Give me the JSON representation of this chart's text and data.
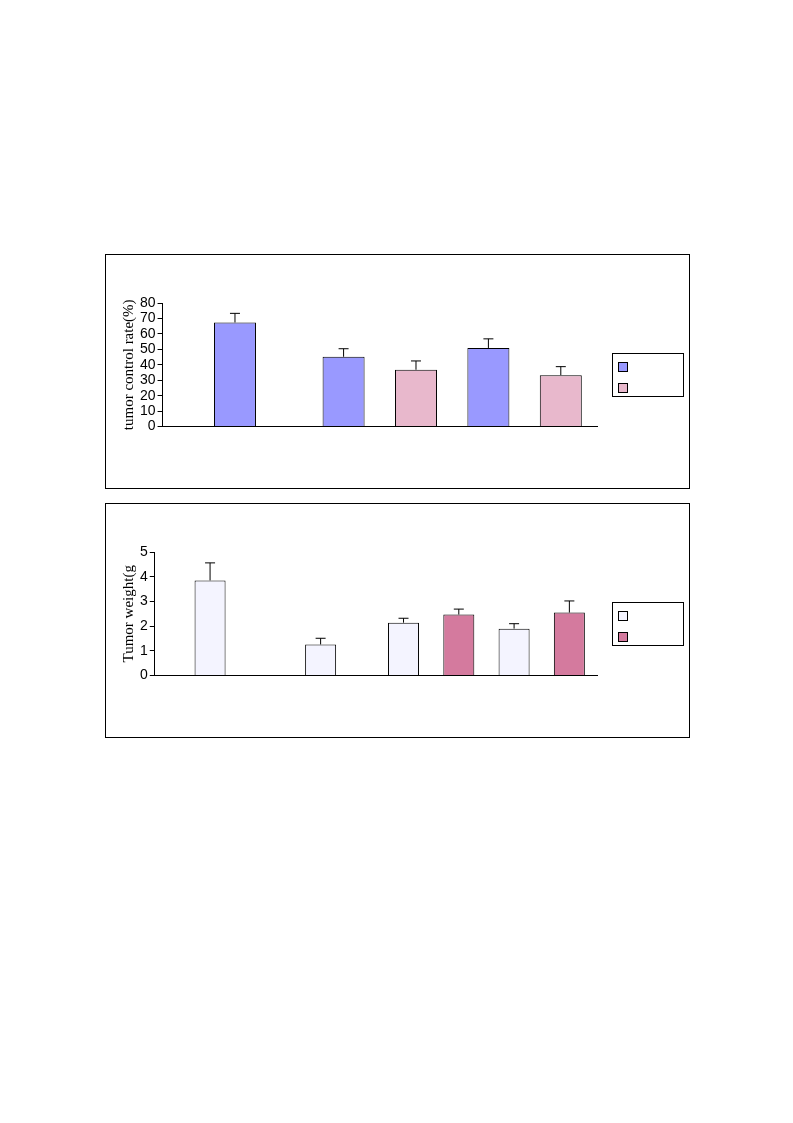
{
  "chart_data": [
    {
      "type": "bar",
      "ylabel": "tumor control rate(%)",
      "categories": [
        null,
        null,
        null
      ],
      "ylim": [
        0,
        80
      ],
      "yticks": [
        0,
        10,
        20,
        30,
        40,
        50,
        60,
        70,
        80
      ],
      "grid": false,
      "series": [
        {
          "color": "#9999ff",
          "values": [
            67.4,
            45.2,
            50.9
          ],
          "errors": [
            [
              67.4,
              73.3
            ],
            [
              45.2,
              50.4
            ],
            [
              50.9,
              56.8
            ]
          ]
        },
        {
          "color": "#e8b8cc",
          "values": [
            null,
            36.8,
            33.3
          ],
          "errors": [
            null,
            [
              36.8,
              42.5
            ],
            [
              33.3,
              38.8
            ]
          ]
        }
      ]
    },
    {
      "type": "bar",
      "ylabel": "Tumor weight(g",
      "categories": [
        null,
        null,
        null,
        null
      ],
      "ylim": [
        0,
        5
      ],
      "yticks": [
        0,
        1,
        2,
        3,
        4,
        5
      ],
      "grid": false,
      "series": [
        {
          "color": "#f4f4ff",
          "values": [
            3.85,
            1.26,
            2.14,
            1.9
          ],
          "errors": [
            [
              3.85,
              4.56
            ],
            [
              1.26,
              1.51
            ],
            [
              2.14,
              2.32
            ],
            [
              1.9,
              2.1
            ]
          ]
        },
        {
          "color": "#d47a9e",
          "values": [
            null,
            null,
            2.47,
            2.55
          ],
          "errors": [
            null,
            null,
            [
              2.47,
              2.69
            ],
            [
              2.55,
              3.02
            ]
          ]
        }
      ]
    }
  ]
}
